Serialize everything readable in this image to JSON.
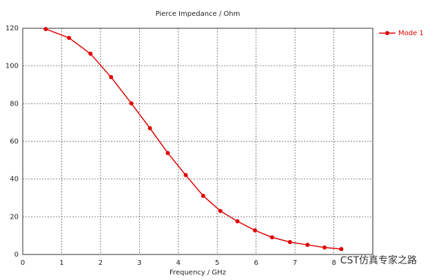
{
  "chart_data": {
    "type": "line",
    "title": "Pierce Impedance / Ohm",
    "x_label": "Frequency / GHz",
    "x": [
      0.59,
      1.19,
      1.74,
      2.27,
      2.79,
      3.27,
      3.73,
      4.19,
      4.64,
      5.08,
      5.52,
      5.97,
      6.41,
      6.87,
      7.32,
      7.76,
      8.19
    ],
    "series": [
      {
        "name": "Mode 1",
        "color": "#e00000",
        "values": [
          119.6,
          114.9,
          106.5,
          94.1,
          80.2,
          67.0,
          53.8,
          42.1,
          31.1,
          23.1,
          17.6,
          12.8,
          9.1,
          6.6,
          5.1,
          3.7,
          2.9
        ]
      }
    ],
    "xlim": [
      0,
      9
    ],
    "xticks": [
      0,
      1,
      2,
      3,
      4,
      5,
      6,
      7,
      8
    ],
    "ylim": [
      0,
      120
    ],
    "yticks": [
      0,
      20,
      40,
      60,
      80,
      100,
      120
    ],
    "grid": true,
    "legend_position": "right",
    "watermark": "CST仿真专家之路"
  }
}
